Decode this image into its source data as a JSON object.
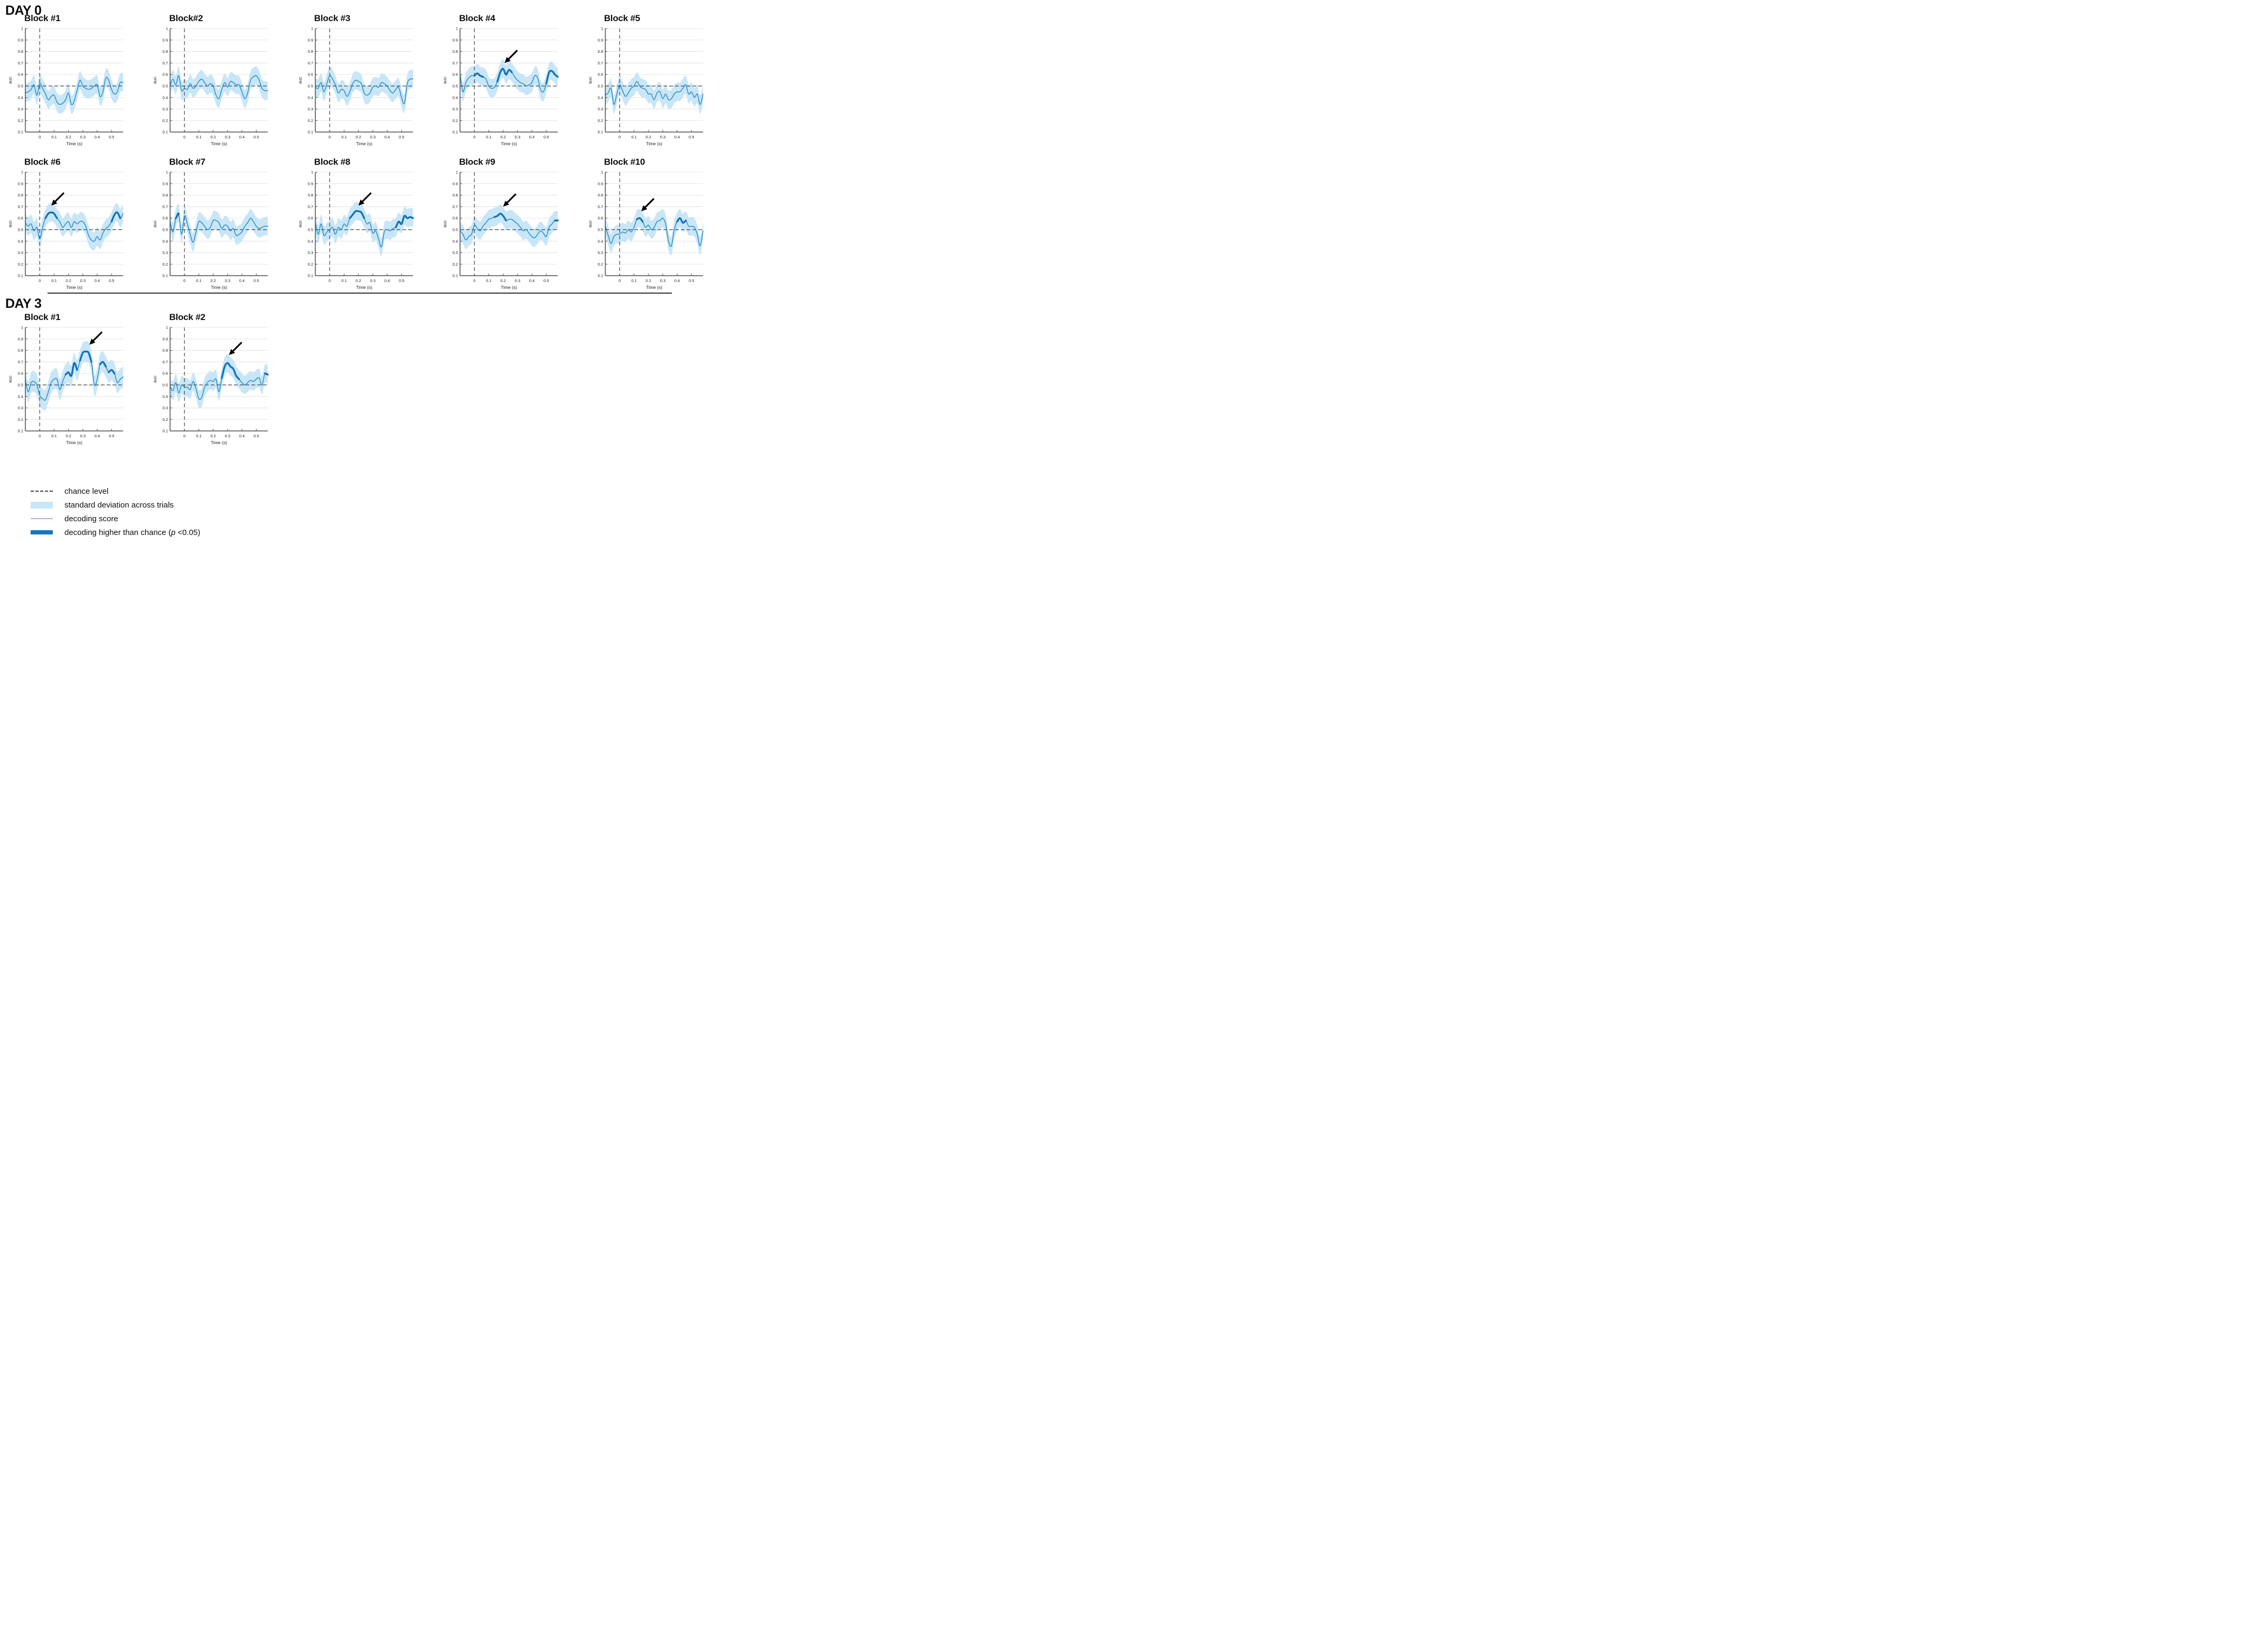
{
  "sections": [
    {
      "label": "DAY 0"
    },
    {
      "label": "DAY 3"
    }
  ],
  "colors": {
    "band": "#c8e6f7",
    "line": "#1b86c8",
    "significant": "#0f72b8",
    "legend_thin_line": "#a9b3e2",
    "legend_thick_line": "#1478be",
    "dashed": "#3d3d3d",
    "grid": "#dcdcdc",
    "spine": "#4a4a4a",
    "arrow": "#000000"
  },
  "legend": {
    "items": [
      {
        "swatch": "dashed-line",
        "label": "chance level"
      },
      {
        "swatch": "band",
        "label": "standard deviation across trials"
      },
      {
        "swatch": "thin-line",
        "label": "decoding score"
      },
      {
        "swatch": "thick-line",
        "label_pre": "decoding higher than chance (",
        "label_italic": "p",
        "label_post": " <0.05)"
      }
    ]
  },
  "chart_data": {
    "type": "line",
    "xlabel": "Time (s)",
    "ylabel": "auc",
    "xlim": [
      -0.1,
      0.58
    ],
    "ylim": [
      0.1,
      1.0
    ],
    "xticks": [
      0,
      0.1,
      0.2,
      0.3,
      0.4,
      0.5
    ],
    "yticks": [
      1,
      0.9,
      0.8,
      0.7,
      0.6,
      0.5,
      0.4,
      0.3,
      0.2,
      0.1
    ],
    "grid": true,
    "chance_level": 0.5,
    "event_time": 0,
    "x_start": -0.1,
    "x_step": 0.02,
    "panels": [
      {
        "id": "day0-block1",
        "day": "DAY 0",
        "row": 0,
        "col": 0,
        "title": "Block #1",
        "arrow": null,
        "band_halfwidth": 0.08,
        "sig_windows": [],
        "auc": [
          0.44,
          0.45,
          0.47,
          0.51,
          0.42,
          0.52,
          0.48,
          0.43,
          0.38,
          0.41,
          0.42,
          0.36,
          0.34,
          0.35,
          0.38,
          0.44,
          0.34,
          0.37,
          0.46,
          0.55,
          0.5,
          0.48,
          0.47,
          0.48,
          0.5,
          0.51,
          0.41,
          0.45,
          0.57,
          0.55,
          0.47,
          0.43,
          0.45,
          0.53,
          0.53
        ]
      },
      {
        "id": "day0-block2",
        "day": "DAY 0",
        "row": 0,
        "col": 1,
        "title": "Block#2",
        "arrow": null,
        "band_halfwidth": 0.08,
        "sig_windows": [],
        "auc": [
          0.5,
          0.56,
          0.51,
          0.59,
          0.46,
          0.48,
          0.47,
          0.52,
          0.48,
          0.5,
          0.54,
          0.56,
          0.53,
          0.5,
          0.52,
          0.5,
          0.42,
          0.39,
          0.47,
          0.53,
          0.49,
          0.54,
          0.53,
          0.51,
          0.51,
          0.45,
          0.39,
          0.44,
          0.55,
          0.58,
          0.59,
          0.55,
          0.48,
          0.46,
          0.46
        ]
      },
      {
        "id": "day0-block3",
        "day": "DAY 0",
        "row": 0,
        "col": 2,
        "title": "Block #3",
        "arrow": null,
        "band_halfwidth": 0.08,
        "sig_windows": [],
        "auc": [
          0.49,
          0.48,
          0.53,
          0.45,
          0.52,
          0.59,
          0.56,
          0.51,
          0.44,
          0.47,
          0.46,
          0.41,
          0.45,
          0.52,
          0.55,
          0.54,
          0.52,
          0.44,
          0.42,
          0.44,
          0.49,
          0.5,
          0.49,
          0.53,
          0.52,
          0.5,
          0.46,
          0.44,
          0.47,
          0.49,
          0.4,
          0.35,
          0.52,
          0.56,
          0.56
        ]
      },
      {
        "id": "day0-block4",
        "day": "DAY 0",
        "row": 0,
        "col": 3,
        "title": "Block #4",
        "arrow": {
          "t": 0.21,
          "auc": 0.7
        },
        "band_halfwidth": 0.08,
        "sig_windows": [
          [
            0.0,
            0.06
          ],
          [
            0.15,
            0.27
          ],
          [
            0.5,
            0.58
          ]
        ],
        "auc": [
          0.6,
          0.45,
          0.53,
          0.57,
          0.59,
          0.59,
          0.61,
          0.59,
          0.58,
          0.56,
          0.5,
          0.48,
          0.49,
          0.54,
          0.62,
          0.65,
          0.6,
          0.64,
          0.62,
          0.58,
          0.55,
          0.53,
          0.52,
          0.5,
          0.51,
          0.53,
          0.59,
          0.57,
          0.47,
          0.45,
          0.52,
          0.62,
          0.63,
          0.6,
          0.58
        ]
      },
      {
        "id": "day0-block5",
        "day": "DAY 0",
        "row": 0,
        "col": 4,
        "title": "Block #5",
        "arrow": null,
        "band_halfwidth": 0.08,
        "sig_windows": [],
        "auc": [
          0.42,
          0.44,
          0.48,
          0.34,
          0.43,
          0.51,
          0.46,
          0.41,
          0.44,
          0.48,
          0.5,
          0.54,
          0.5,
          0.48,
          0.47,
          0.43,
          0.43,
          0.38,
          0.44,
          0.45,
          0.39,
          0.43,
          0.38,
          0.39,
          0.43,
          0.45,
          0.45,
          0.48,
          0.51,
          0.43,
          0.45,
          0.4,
          0.43,
          0.34,
          0.43
        ]
      },
      {
        "id": "day0-block6",
        "day": "DAY 0",
        "row": 1,
        "col": 0,
        "title": "Block #6",
        "arrow": {
          "t": 0.08,
          "auc": 0.71
        },
        "band_halfwidth": 0.08,
        "sig_windows": [
          [
            0.04,
            0.12
          ],
          [
            0.5,
            0.56
          ]
        ],
        "auc": [
          0.56,
          0.53,
          0.55,
          0.49,
          0.52,
          0.42,
          0.52,
          0.6,
          0.64,
          0.65,
          0.64,
          0.6,
          0.57,
          0.52,
          0.55,
          0.57,
          0.52,
          0.57,
          0.55,
          0.57,
          0.57,
          0.53,
          0.45,
          0.41,
          0.4,
          0.44,
          0.41,
          0.47,
          0.51,
          0.53,
          0.57,
          0.63,
          0.65,
          0.6,
          0.64
        ]
      },
      {
        "id": "day0-block7",
        "day": "DAY 0",
        "row": 1,
        "col": 1,
        "title": "Block #7",
        "arrow": null,
        "band_halfwidth": 0.08,
        "sig_windows": [
          [
            -0.06,
            -0.035
          ]
        ],
        "auc": [
          0.57,
          0.48,
          0.6,
          0.64,
          0.46,
          0.62,
          0.55,
          0.46,
          0.39,
          0.48,
          0.57,
          0.56,
          0.53,
          0.5,
          0.52,
          0.58,
          0.58,
          0.56,
          0.51,
          0.54,
          0.53,
          0.49,
          0.51,
          0.45,
          0.46,
          0.48,
          0.53,
          0.56,
          0.6,
          0.57,
          0.53,
          0.51,
          0.52,
          0.53,
          0.53
        ]
      },
      {
        "id": "day0-block8",
        "day": "DAY 0",
        "row": 1,
        "col": 2,
        "title": "Block #8",
        "arrow": {
          "t": 0.2,
          "auc": 0.71
        },
        "band_halfwidth": 0.08,
        "sig_windows": [
          [
            0.13,
            0.24
          ],
          [
            0.46,
            0.58
          ]
        ],
        "auc": [
          0.56,
          0.46,
          0.55,
          0.45,
          0.48,
          0.5,
          0.52,
          0.46,
          0.52,
          0.5,
          0.55,
          0.53,
          0.6,
          0.63,
          0.66,
          0.66,
          0.65,
          0.6,
          0.55,
          0.56,
          0.47,
          0.49,
          0.42,
          0.35,
          0.48,
          0.5,
          0.49,
          0.51,
          0.52,
          0.57,
          0.55,
          0.62,
          0.6,
          0.61,
          0.6
        ]
      },
      {
        "id": "day0-block9",
        "day": "DAY 0",
        "row": 1,
        "col": 3,
        "title": "Block #9",
        "arrow": {
          "t": 0.2,
          "auc": 0.7
        },
        "band_halfwidth": 0.08,
        "sig_windows": [
          [
            0.14,
            0.22
          ],
          [
            0.55,
            0.58
          ]
        ],
        "auc": [
          0.49,
          0.46,
          0.41,
          0.44,
          0.46,
          0.54,
          0.51,
          0.49,
          0.53,
          0.56,
          0.59,
          0.6,
          0.61,
          0.62,
          0.64,
          0.62,
          0.58,
          0.59,
          0.59,
          0.57,
          0.55,
          0.52,
          0.49,
          0.5,
          0.47,
          0.44,
          0.43,
          0.46,
          0.49,
          0.47,
          0.44,
          0.52,
          0.55,
          0.58,
          0.58
        ]
      },
      {
        "id": "day0-block10",
        "day": "DAY 0",
        "row": 1,
        "col": 4,
        "title": "Block #10",
        "arrow": {
          "t": 0.15,
          "auc": 0.66
        },
        "band_halfwidth": 0.08,
        "sig_windows": [
          [
            0.11,
            0.17
          ],
          [
            0.4,
            0.46
          ]
        ],
        "auc": [
          0.53,
          0.45,
          0.38,
          0.44,
          0.46,
          0.46,
          0.48,
          0.47,
          0.5,
          0.48,
          0.52,
          0.59,
          0.6,
          0.57,
          0.52,
          0.54,
          0.5,
          0.52,
          0.57,
          0.58,
          0.6,
          0.55,
          0.4,
          0.36,
          0.5,
          0.57,
          0.6,
          0.56,
          0.58,
          0.53,
          0.53,
          0.52,
          0.46,
          0.36,
          0.49
        ]
      },
      {
        "id": "day3-block1",
        "day": "DAY 3",
        "row": 2,
        "col": 0,
        "title": "Block #1",
        "arrow": {
          "t": 0.345,
          "auc": 0.85
        },
        "band_halfwidth": 0.09,
        "sig_windows": [
          [
            0.17,
            0.26
          ],
          [
            0.28,
            0.37
          ],
          [
            0.42,
            0.46
          ],
          [
            0.48,
            0.52
          ]
        ],
        "auc": [
          0.54,
          0.44,
          0.52,
          0.53,
          0.5,
          0.41,
          0.38,
          0.37,
          0.44,
          0.52,
          0.55,
          0.55,
          0.46,
          0.53,
          0.59,
          0.61,
          0.58,
          0.69,
          0.63,
          0.71,
          0.78,
          0.79,
          0.78,
          0.7,
          0.5,
          0.55,
          0.68,
          0.7,
          0.66,
          0.61,
          0.63,
          0.6,
          0.52,
          0.55,
          0.57
        ]
      },
      {
        "id": "day3-block2",
        "day": "DAY 3",
        "row": 2,
        "col": 1,
        "title": "Block #2",
        "arrow": {
          "t": 0.31,
          "auc": 0.76
        },
        "band_halfwidth": 0.08,
        "sig_windows": [
          [
            0.26,
            0.38
          ],
          [
            0.55,
            0.58
          ]
        ],
        "auc": [
          0.49,
          0.45,
          0.52,
          0.43,
          0.5,
          0.48,
          0.48,
          0.46,
          0.53,
          0.47,
          0.38,
          0.39,
          0.48,
          0.52,
          0.54,
          0.53,
          0.55,
          0.44,
          0.56,
          0.66,
          0.69,
          0.66,
          0.64,
          0.58,
          0.55,
          0.52,
          0.5,
          0.52,
          0.54,
          0.53,
          0.55,
          0.56,
          0.5,
          0.6,
          0.59
        ]
      }
    ]
  }
}
